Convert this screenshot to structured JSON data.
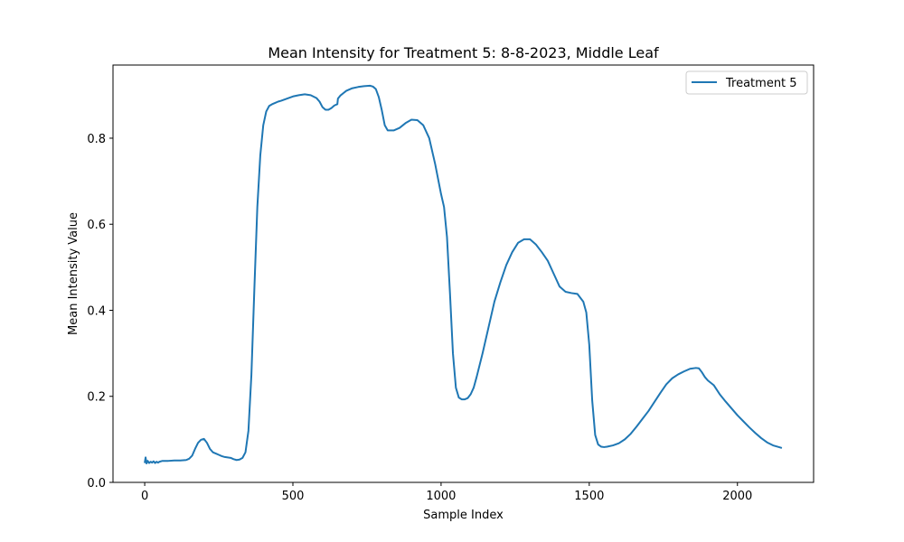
{
  "chart_data": {
    "type": "line",
    "title": "Mean Intensity for Treatment 5: 8-8-2023, Middle Leaf",
    "xlabel": "Sample Index",
    "ylabel": "Mean Intensity Value",
    "xlim": [
      -107,
      2257
    ],
    "ylim": [
      0.0,
      0.97
    ],
    "xticks": [
      0,
      500,
      1000,
      1500,
      2000
    ],
    "xtick_labels": [
      "0",
      "500",
      "1000",
      "1500",
      "2000"
    ],
    "yticks": [
      0.0,
      0.2,
      0.4,
      0.6,
      0.8
    ],
    "ytick_labels": [
      "0.0",
      "0.2",
      "0.4",
      "0.6",
      "0.8"
    ],
    "grid": false,
    "legend_position": "top-right",
    "series": [
      {
        "name": "Treatment 5",
        "color": "#1f77b4",
        "x": [
          0,
          3,
          6,
          10,
          15,
          20,
          25,
          30,
          35,
          40,
          45,
          50,
          60,
          80,
          100,
          120,
          140,
          150,
          160,
          170,
          180,
          190,
          200,
          210,
          220,
          230,
          240,
          250,
          260,
          270,
          280,
          290,
          300,
          310,
          320,
          330,
          340,
          350,
          360,
          370,
          380,
          390,
          400,
          410,
          420,
          430,
          440,
          450,
          460,
          480,
          500,
          520,
          540,
          560,
          580,
          590,
          600,
          610,
          620,
          630,
          640,
          650,
          652,
          660,
          680,
          700,
          720,
          740,
          760,
          770,
          780,
          790,
          800,
          810,
          820,
          840,
          860,
          880,
          900,
          920,
          940,
          960,
          980,
          1000,
          1010,
          1020,
          1030,
          1040,
          1050,
          1060,
          1070,
          1080,
          1090,
          1100,
          1110,
          1120,
          1140,
          1160,
          1180,
          1200,
          1220,
          1240,
          1260,
          1280,
          1300,
          1320,
          1340,
          1360,
          1380,
          1400,
          1420,
          1440,
          1460,
          1480,
          1490,
          1500,
          1510,
          1520,
          1530,
          1540,
          1550,
          1560,
          1580,
          1600,
          1620,
          1640,
          1660,
          1680,
          1700,
          1720,
          1740,
          1760,
          1780,
          1800,
          1820,
          1840,
          1860,
          1870,
          1880,
          1890,
          1900,
          1920,
          1940,
          1960,
          1980,
          2000,
          2020,
          2040,
          2060,
          2080,
          2100,
          2120,
          2140,
          2150
        ],
        "values": [
          0.045,
          0.058,
          0.044,
          0.05,
          0.045,
          0.048,
          0.046,
          0.049,
          0.045,
          0.048,
          0.046,
          0.048,
          0.05,
          0.05,
          0.051,
          0.051,
          0.052,
          0.055,
          0.062,
          0.078,
          0.092,
          0.099,
          0.101,
          0.092,
          0.078,
          0.07,
          0.067,
          0.064,
          0.061,
          0.059,
          0.058,
          0.057,
          0.054,
          0.052,
          0.053,
          0.057,
          0.07,
          0.12,
          0.25,
          0.45,
          0.64,
          0.76,
          0.83,
          0.862,
          0.875,
          0.879,
          0.882,
          0.885,
          0.887,
          0.892,
          0.897,
          0.9,
          0.902,
          0.9,
          0.893,
          0.885,
          0.872,
          0.866,
          0.866,
          0.87,
          0.876,
          0.879,
          0.892,
          0.899,
          0.91,
          0.916,
          0.919,
          0.921,
          0.922,
          0.92,
          0.914,
          0.895,
          0.865,
          0.83,
          0.818,
          0.818,
          0.824,
          0.835,
          0.843,
          0.842,
          0.83,
          0.8,
          0.74,
          0.67,
          0.64,
          0.57,
          0.44,
          0.3,
          0.22,
          0.197,
          0.193,
          0.193,
          0.196,
          0.205,
          0.22,
          0.245,
          0.3,
          0.36,
          0.42,
          0.465,
          0.505,
          0.535,
          0.557,
          0.565,
          0.565,
          0.553,
          0.535,
          0.515,
          0.485,
          0.455,
          0.443,
          0.44,
          0.438,
          0.42,
          0.395,
          0.32,
          0.19,
          0.11,
          0.088,
          0.083,
          0.082,
          0.083,
          0.086,
          0.091,
          0.1,
          0.113,
          0.13,
          0.148,
          0.166,
          0.187,
          0.208,
          0.228,
          0.242,
          0.251,
          0.258,
          0.264,
          0.266,
          0.265,
          0.256,
          0.245,
          0.237,
          0.226,
          0.205,
          0.188,
          0.172,
          0.156,
          0.142,
          0.128,
          0.115,
          0.103,
          0.093,
          0.086,
          0.082,
          0.08
        ]
      }
    ]
  }
}
